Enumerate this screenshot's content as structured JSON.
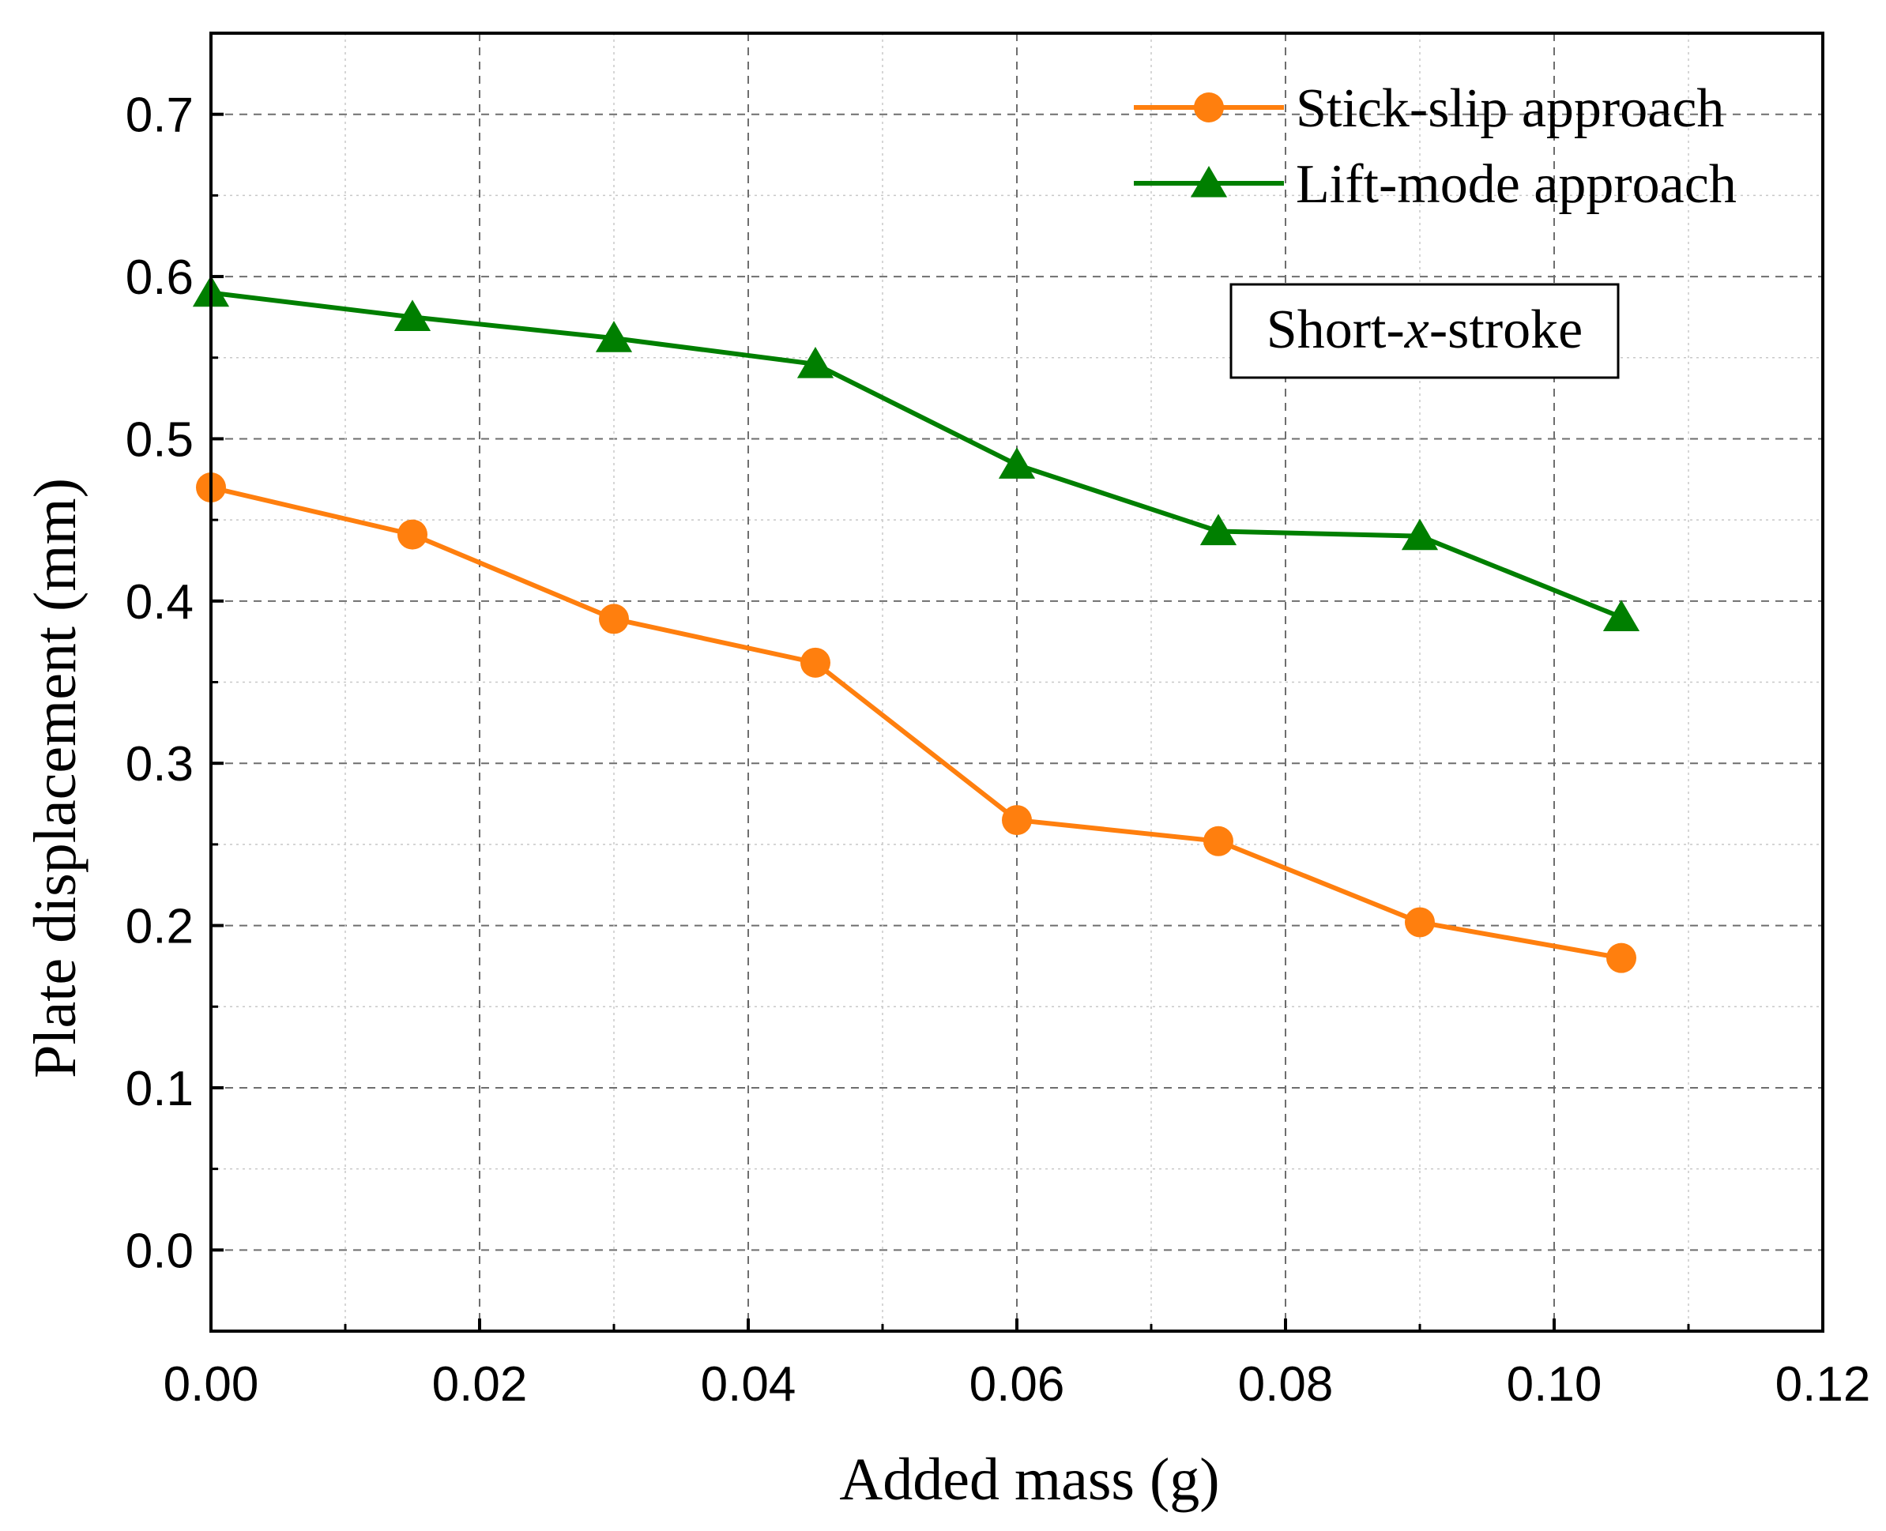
{
  "chart_data": {
    "type": "line",
    "title": "",
    "xlabel": "Added mass (g)",
    "ylabel": "Plate displacement (mm)",
    "xlim": [
      0.0,
      0.12
    ],
    "ylim": [
      -0.05,
      0.75
    ],
    "xticks": [
      "0.00",
      "0.02",
      "0.04",
      "0.06",
      "0.08",
      "0.10",
      "0.12"
    ],
    "yticks": [
      "0.0",
      "0.1",
      "0.2",
      "0.3",
      "0.4",
      "0.5",
      "0.6",
      "0.7"
    ],
    "grid": true,
    "legend_position": "top-right",
    "x": [
      0.0,
      0.015,
      0.03,
      0.045,
      0.06,
      0.075,
      0.09,
      0.105
    ],
    "series": [
      {
        "name": "Stick-slip approach",
        "marker": "circle",
        "color": "#ff7f0e",
        "values": [
          0.47,
          0.441,
          0.389,
          0.362,
          0.265,
          0.252,
          0.202,
          0.18
        ]
      },
      {
        "name": "Lift-mode approach",
        "marker": "triangle",
        "color": "#007f00",
        "values": [
          0.59,
          0.575,
          0.562,
          0.546,
          0.484,
          0.443,
          0.44,
          0.39
        ]
      }
    ],
    "annotation": {
      "prefix": "Short-",
      "italic": "x",
      "suffix": "-stroke"
    }
  }
}
